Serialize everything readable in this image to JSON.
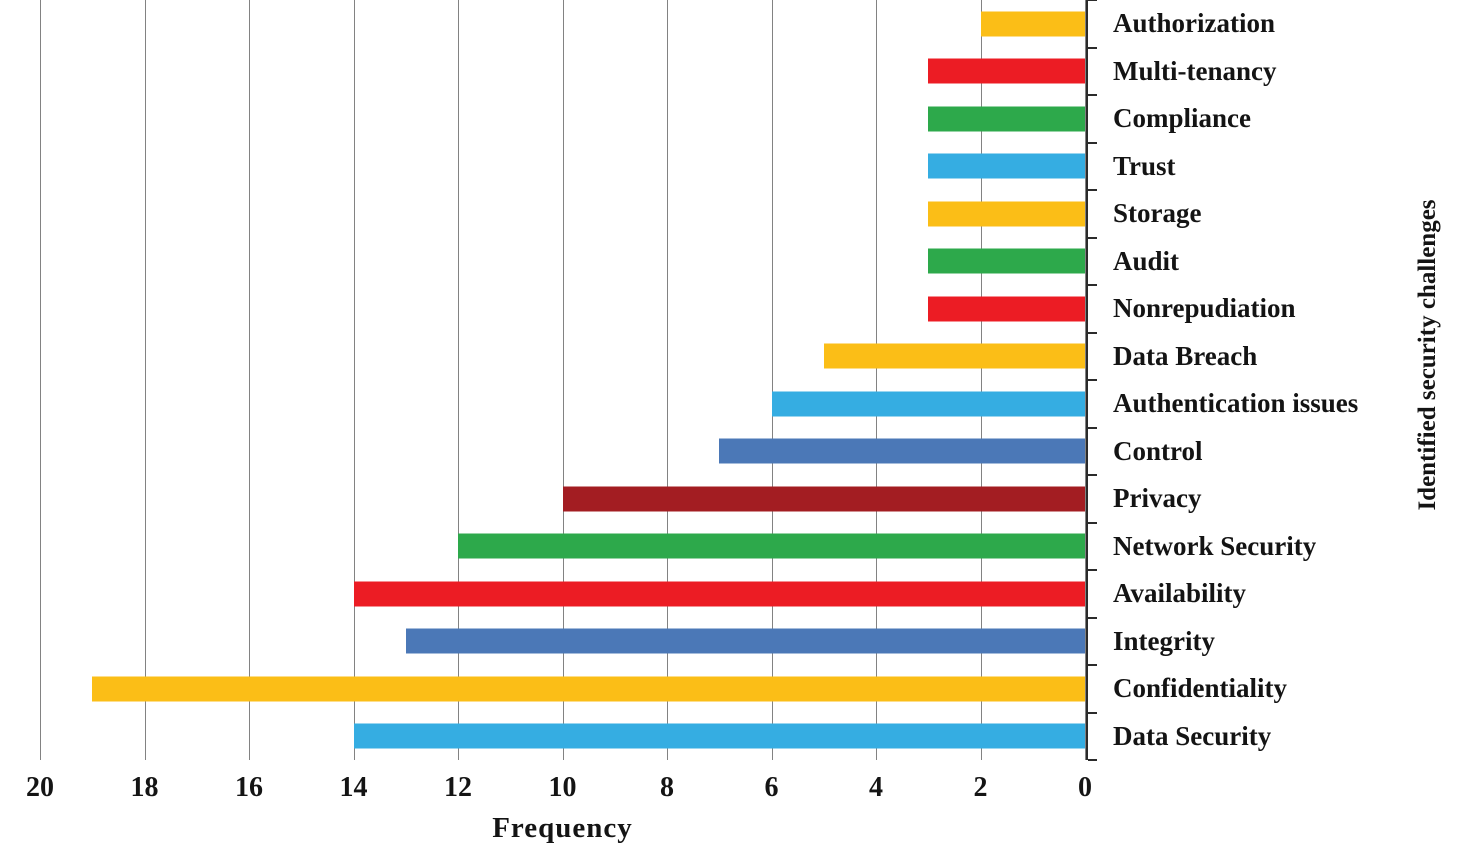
{
  "chart_data": {
    "type": "bar",
    "orientation": "horizontal",
    "title": "",
    "xlabel": "Frequency",
    "ylabel": "Identified security challenges",
    "x_axis_reversed": true,
    "xlim": [
      20,
      0
    ],
    "x_ticks": [
      20,
      18,
      16,
      14,
      12,
      10,
      8,
      6,
      4,
      2,
      0
    ],
    "grid": "vertical",
    "legend": "none",
    "categories": [
      "Authorization",
      "Multi-tenancy",
      "Compliance",
      "Trust",
      "Storage",
      "Audit",
      "Nonrepudiation",
      "Data Breach",
      "Authentication issues",
      "Control",
      "Privacy",
      "Network Security",
      "Availability",
      "Integrity",
      "Confidentiality",
      "Data Security"
    ],
    "values": [
      2,
      3,
      3,
      3,
      3,
      3,
      3,
      5,
      6,
      7,
      10,
      12,
      14,
      13,
      19,
      14
    ],
    "bar_colors": [
      "#FBBE17",
      "#EC1C24",
      "#2DA94B",
      "#35ADE2",
      "#FBBE17",
      "#2DA94B",
      "#EC1C24",
      "#FBBE17",
      "#35ADE2",
      "#4B78B7",
      "#A31D22",
      "#2DA94B",
      "#EC1C24",
      "#4B78B7",
      "#FBBE17",
      "#35ADE2"
    ],
    "colors_meaning": {
      "axis_color": "#2B2B2B",
      "gridline_color": "#828282",
      "text_color": "#141414"
    }
  }
}
